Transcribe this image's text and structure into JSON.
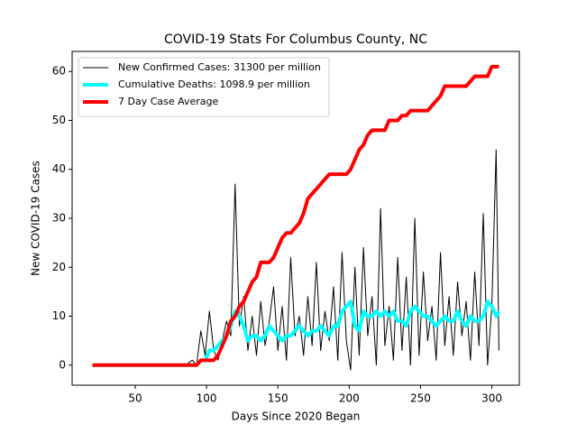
{
  "chart_data": {
    "type": "line",
    "title": "COVID-19 Stats For Columbus County, NC",
    "x_label": "Days Since 2020 Began",
    "y_label": "New COVID-19 Cases",
    "x": [
      20,
      25,
      30,
      35,
      40,
      45,
      50,
      55,
      60,
      65,
      70,
      75,
      80,
      85,
      90,
      93,
      96,
      99,
      102,
      105,
      108,
      111,
      114,
      117,
      120,
      123,
      126,
      129,
      132,
      135,
      138,
      141,
      144,
      147,
      150,
      153,
      156,
      159,
      162,
      165,
      168,
      171,
      174,
      177,
      180,
      183,
      186,
      189,
      192,
      195,
      198,
      201,
      204,
      207,
      210,
      213,
      216,
      219,
      222,
      225,
      228,
      231,
      234,
      237,
      240,
      243,
      246,
      249,
      252,
      255,
      258,
      261,
      264,
      267,
      270,
      273,
      276,
      279,
      282,
      285,
      288,
      291,
      294,
      297,
      300,
      303,
      305
    ],
    "series": [
      {
        "name": "New Confirmed Cases: 31300 per million",
        "color": "#000000",
        "values": [
          0,
          0,
          0,
          0,
          0,
          0,
          0,
          0,
          0,
          0,
          0,
          0,
          0,
          0,
          1,
          0,
          7,
          2,
          11,
          3,
          1,
          5,
          9,
          6,
          37,
          8,
          14,
          3,
          10,
          2,
          13,
          4,
          9,
          16,
          3,
          12,
          1,
          22,
          6,
          10,
          2,
          14,
          4,
          21,
          3,
          11,
          5,
          16,
          1,
          23,
          5,
          -1,
          20,
          2,
          24,
          6,
          14,
          0,
          32,
          4,
          12,
          1,
          22,
          3,
          18,
          0,
          30,
          2,
          19,
          5,
          12,
          1,
          23,
          4,
          14,
          2,
          17,
          6,
          13,
          1,
          19,
          4,
          31,
          0,
          12,
          44,
          3
        ]
      },
      {
        "name": "Cumulative Deaths: 1098.9 per million",
        "color": "#00ffff",
        "values": [
          0,
          0,
          0,
          0,
          0,
          0,
          0,
          0,
          0,
          0,
          0,
          0,
          0,
          0,
          0,
          0,
          1,
          1,
          3,
          3,
          4,
          5,
          6,
          8,
          11,
          10,
          8,
          5,
          6,
          6,
          5,
          6,
          8,
          7,
          6,
          5,
          6,
          6,
          7,
          8,
          7,
          6,
          7,
          7,
          8,
          7,
          6,
          8,
          8,
          11,
          12,
          13,
          8,
          7,
          11,
          10,
          10,
          11,
          10,
          11,
          10,
          11,
          9,
          9,
          8,
          11,
          12,
          11,
          10,
          10,
          9,
          8,
          9,
          10,
          9,
          9,
          11,
          9,
          8,
          10,
          9,
          9,
          10,
          13,
          12,
          10,
          11
        ]
      },
      {
        "name": "7 Day Case Average",
        "color": "#ff0000",
        "values": [
          0,
          0,
          0,
          0,
          0,
          0,
          0,
          0,
          0,
          0,
          0,
          0,
          0,
          0,
          0,
          0,
          1,
          1,
          1,
          1,
          2,
          4,
          6,
          9,
          10,
          12,
          13,
          15,
          17,
          18,
          21,
          21,
          21,
          22,
          24,
          26,
          27,
          27,
          28,
          29,
          31,
          34,
          35,
          36,
          37,
          38,
          39,
          39,
          39,
          39,
          39,
          40,
          42,
          44,
          45,
          47,
          48,
          48,
          48,
          48,
          50,
          50,
          50,
          51,
          51,
          52,
          52,
          52,
          52,
          52,
          53,
          54,
          55,
          57,
          57,
          57,
          57,
          57,
          57,
          58,
          59,
          59,
          59,
          59,
          61,
          61,
          61
        ]
      }
    ],
    "xlim": [
      5.75,
      319.25
    ],
    "xticks": [
      50,
      100,
      150,
      200,
      250,
      300
    ],
    "ylim": [
      -4.1,
      64.1
    ],
    "yticks": [
      0,
      10,
      20,
      30,
      40,
      50,
      60
    ],
    "grid": false,
    "legend": "upper left"
  }
}
